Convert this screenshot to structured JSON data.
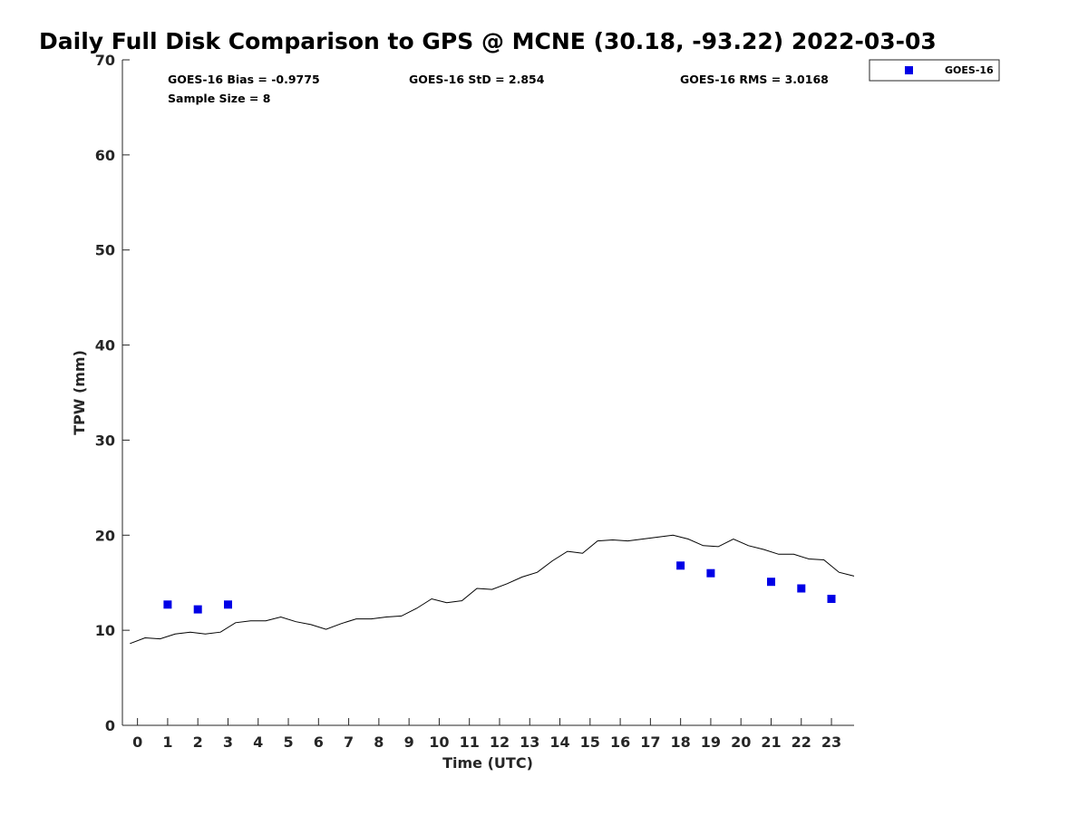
{
  "chart_data": {
    "type": "scatter",
    "title": "Daily Full Disk Comparison to GPS @ MCNE (30.18, -93.22) 2022-03-03",
    "xlabel": "Time (UTC)",
    "ylabel": "TPW (mm)",
    "xlim": [
      -0.5,
      23.75
    ],
    "ylim": [
      0,
      70
    ],
    "x_ticks": [
      0,
      1,
      2,
      3,
      4,
      5,
      6,
      7,
      8,
      9,
      10,
      11,
      12,
      13,
      14,
      15,
      16,
      17,
      18,
      19,
      20,
      21,
      22,
      23
    ],
    "y_ticks": [
      0,
      10,
      20,
      30,
      40,
      50,
      60,
      70
    ],
    "grid": false,
    "legend_position": "top-right outside",
    "stats": {
      "bias": "GOES-16 Bias = -0.9775",
      "std": "GOES-16 StD = 2.854",
      "rms": "GOES-16 RMS = 3.0168",
      "sample": "Sample Size = 8"
    },
    "series": [
      {
        "kind": "line",
        "color": "#000000",
        "x": [
          -0.25,
          0.25,
          0.75,
          1.25,
          1.75,
          2.25,
          2.75,
          3.25,
          3.75,
          4.25,
          4.75,
          5.25,
          5.75,
          6.25,
          6.75,
          7.25,
          7.75,
          8.25,
          8.75,
          9.25,
          9.75,
          10.25,
          10.75,
          11.25,
          11.75,
          12.25,
          12.75,
          13.25,
          13.75,
          14.25,
          14.75,
          15.25,
          15.75,
          16.25,
          16.75,
          17.25,
          17.75,
          18.25,
          18.75,
          19.25,
          19.75,
          20.25,
          20.75,
          21.25,
          21.75,
          22.25,
          22.75,
          23.25,
          23.75
        ],
        "y": [
          8.6,
          9.2,
          9.1,
          9.6,
          9.8,
          9.6,
          9.8,
          10.8,
          11.0,
          11.0,
          11.4,
          10.9,
          10.6,
          10.1,
          10.7,
          11.2,
          11.2,
          11.4,
          11.5,
          12.3,
          13.3,
          12.9,
          13.1,
          14.4,
          14.3,
          14.9,
          15.6,
          16.1,
          17.3,
          18.3,
          18.1,
          19.4,
          19.5,
          19.4,
          19.6,
          19.8,
          20.0,
          19.6,
          18.9,
          18.8,
          19.6,
          18.9,
          18.5,
          18.0,
          18.0,
          17.5,
          17.4,
          16.1,
          15.7
        ]
      },
      {
        "name": "GOES-16",
        "kind": "scatter",
        "color": "#0000e6",
        "x": [
          1,
          2,
          3,
          18,
          19,
          21,
          22,
          23
        ],
        "y": [
          12.7,
          12.2,
          12.7,
          16.8,
          16.0,
          15.1,
          14.4,
          13.3
        ]
      }
    ]
  }
}
